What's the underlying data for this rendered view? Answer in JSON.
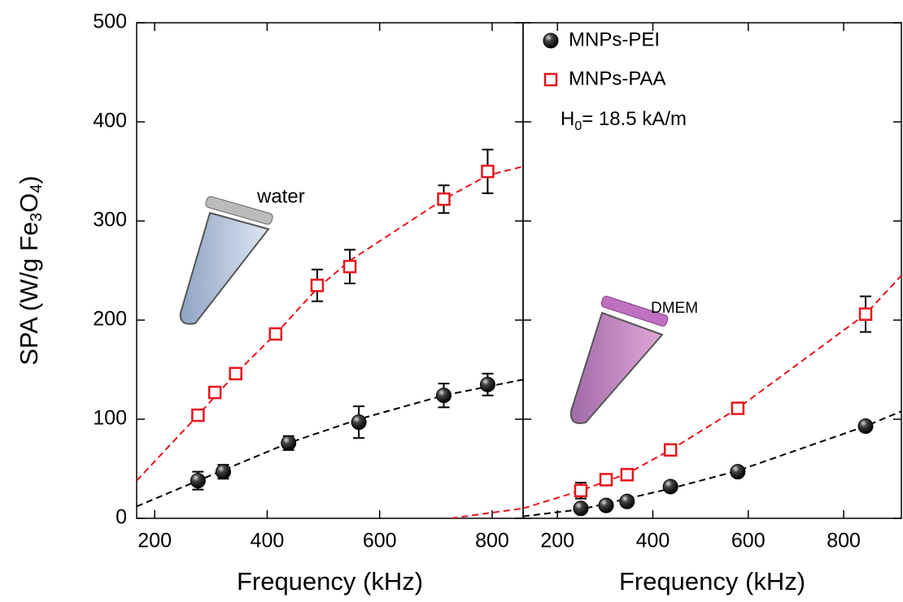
{
  "chart_data": [
    {
      "type": "scatter",
      "xlabel": "Frequency (kHz)",
      "ylabel": [
        "SPA (W/g Fe",
        "3",
        "O",
        "4",
        ")"
      ],
      "xlim": [
        168,
        855
      ],
      "ylim": [
        0,
        500
      ],
      "xticks": [
        200,
        400,
        600,
        800
      ],
      "yticks": [
        0,
        100,
        200,
        300,
        400,
        500
      ],
      "annotation": "water",
      "series": [
        {
          "color": "#000000",
          "marker": "circle",
          "x": [
            277,
            322,
            438,
            563,
            714,
            792
          ],
          "values": [
            38,
            47,
            76,
            97,
            124,
            135
          ],
          "errors": [
            9,
            7,
            7,
            16,
            12,
            11
          ]
        },
        {
          "color": "#e8141b",
          "marker": "square",
          "x": [
            277,
            307,
            344,
            415,
            489,
            547,
            714,
            792
          ],
          "values": [
            104,
            127,
            146,
            186,
            235,
            254,
            322,
            350
          ],
          "errors": [
            4,
            3,
            5,
            3,
            16,
            17,
            14,
            22
          ]
        }
      ],
      "fits": [
        {
          "color": "#000000",
          "x": [
            168,
            277,
            438,
            563,
            714,
            855
          ],
          "values": [
            12,
            38,
            76,
            100,
            124,
            140
          ]
        },
        {
          "color": "#e8141b",
          "x": [
            168,
            277,
            344,
            415,
            489,
            547,
            714,
            792,
            855
          ],
          "values": [
            38,
            104,
            146,
            186,
            232,
            260,
            322,
            346,
            355
          ]
        },
        {
          "color": "#e8141b",
          "x": [
            727,
            790,
            855
          ],
          "values": [
            0,
            5,
            10
          ]
        }
      ]
    },
    {
      "type": "scatter",
      "xlabel": "Frequency (kHz)",
      "xlim": [
        128,
        921
      ],
      "ylim": [
        0,
        500
      ],
      "xticks": [
        200,
        400,
        600,
        800
      ],
      "yticks": [
        0,
        100,
        200,
        300,
        400,
        500
      ],
      "annotation": "DMEM",
      "legend": "upper left",
      "h_label": [
        "H",
        "0",
        "= 18.5 kA/m"
      ],
      "series": [
        {
          "name": "MNPs-PEI",
          "color": "#000000",
          "marker": "circle",
          "x": [
            249,
            302,
            346,
            437,
            578,
            846
          ],
          "values": [
            10,
            13,
            17,
            32,
            47,
            93
          ],
          "errors": [
            2,
            2,
            2,
            2,
            2,
            2
          ]
        },
        {
          "name": "MNPs-PAA",
          "color": "#e8141b",
          "marker": "square",
          "x": [
            249,
            302,
            346,
            437,
            578,
            846
          ],
          "values": [
            28,
            39,
            44,
            69,
            111,
            206
          ],
          "errors": [
            8,
            3,
            3,
            3,
            3,
            18
          ]
        }
      ],
      "fits": [
        {
          "color": "#000000",
          "x": [
            128,
            249,
            437,
            578,
            846,
            921
          ],
          "values": [
            2,
            9,
            30,
            48,
            93,
            108
          ]
        },
        {
          "color": "#e8141b",
          "x": [
            128,
            249,
            346,
            437,
            578,
            846,
            921
          ],
          "values": [
            10,
            28,
            45,
            69,
            111,
            206,
            245
          ]
        }
      ]
    }
  ]
}
